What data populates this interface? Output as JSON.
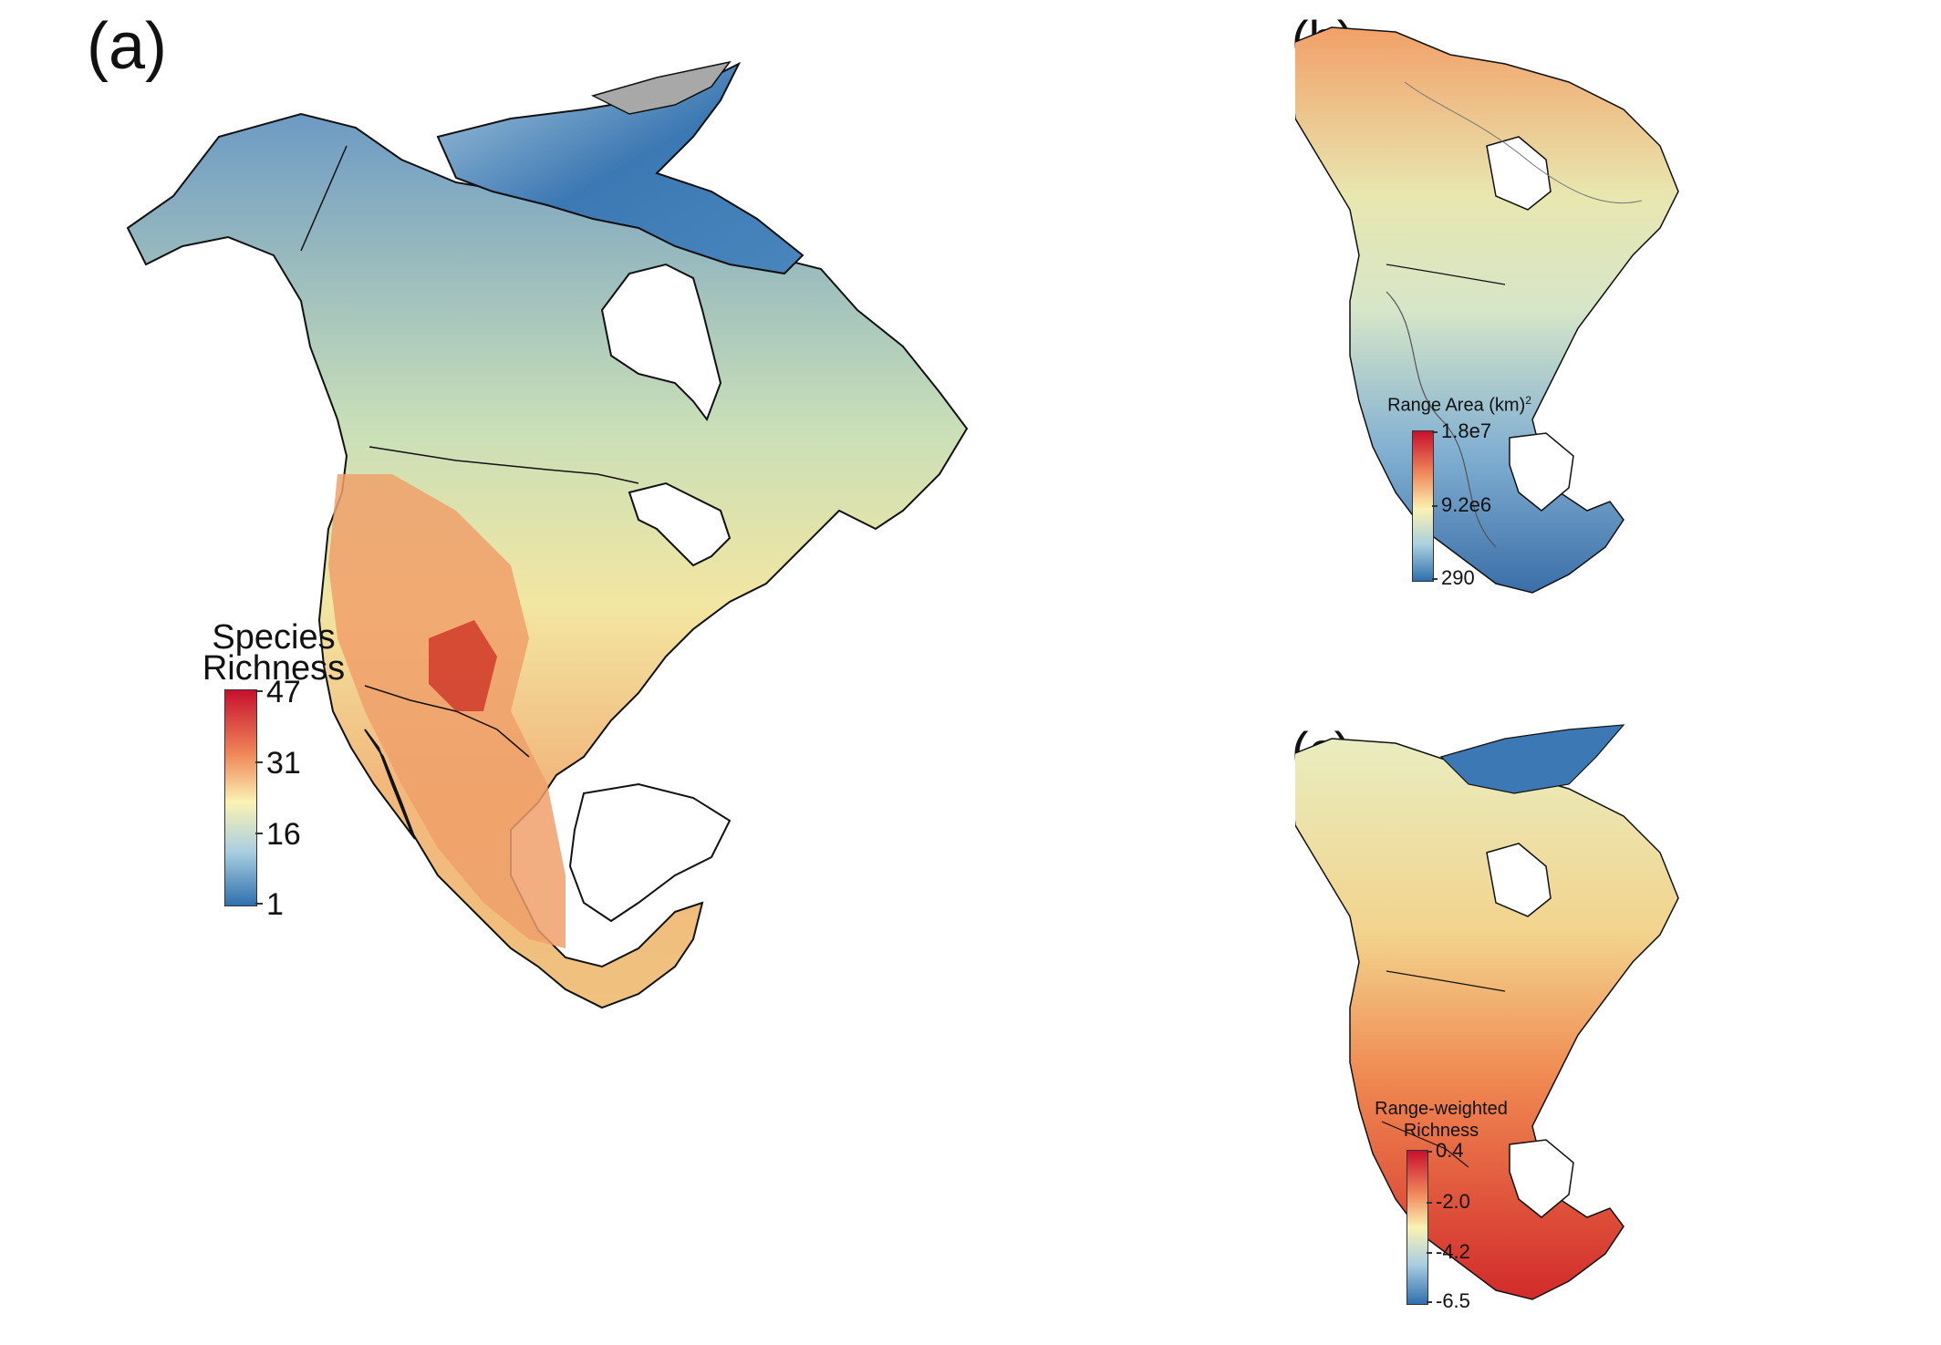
{
  "panels": {
    "a": {
      "label": "(a)",
      "legend": {
        "title_line1": "Species",
        "title_line2": "Richness",
        "ticks": [
          "47",
          "31",
          "16",
          "1"
        ]
      }
    },
    "b": {
      "label": "(b)",
      "legend": {
        "title": "Range Area (km)",
        "title_sup": "2",
        "ticks": [
          "1.8e7",
          "9.2e6",
          "290"
        ]
      }
    },
    "c": {
      "label": "(c)",
      "legend": {
        "title_line1": "Range-weighted",
        "title_line2": "Richness",
        "ticks": [
          "0.4",
          "-2.0",
          "-4.2",
          "-6.5"
        ]
      }
    }
  },
  "colors": {
    "high": "#c8102e",
    "mid_high": "#f39a5a",
    "mid": "#f7f3b0",
    "mid_low": "#a9cfe0",
    "low": "#2f6fae",
    "nodata": "#a8a8a8",
    "border": "#111111"
  }
}
